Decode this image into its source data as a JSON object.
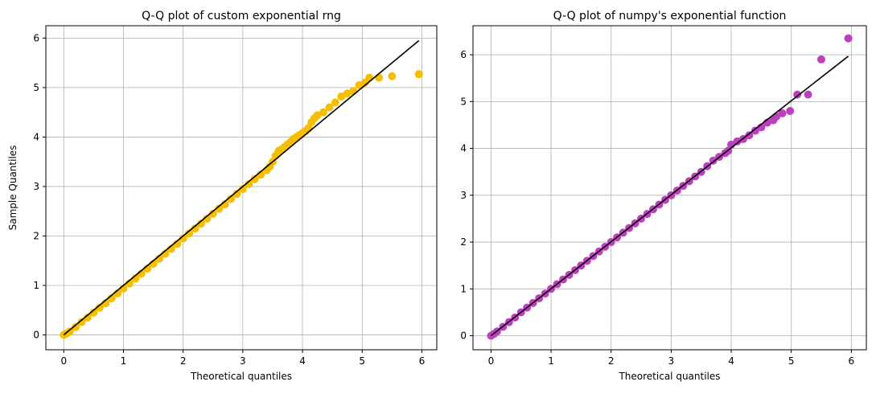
{
  "chart_data": [
    {
      "type": "scatter",
      "title": "Q-Q plot of custom exponential rng",
      "xlabel": "Theoretical quantiles",
      "ylabel": "Sample Quantiles",
      "xlim": [
        -0.3,
        6.25
      ],
      "ylim": [
        -0.3,
        6.25
      ],
      "xticks": [
        0,
        1,
        2,
        3,
        4,
        5,
        6
      ],
      "yticks": [
        0,
        1,
        2,
        3,
        4,
        5,
        6
      ],
      "grid": true,
      "point_color": "#f5be00",
      "line_color": "#000000",
      "reference_line": {
        "x": [
          0,
          5.95
        ],
        "y": [
          0,
          5.95
        ]
      },
      "points": [
        [
          0.0,
          0.0
        ],
        [
          0.05,
          0.03
        ],
        [
          0.1,
          0.07
        ],
        [
          0.2,
          0.16
        ],
        [
          0.3,
          0.26
        ],
        [
          0.4,
          0.35
        ],
        [
          0.5,
          0.45
        ],
        [
          0.6,
          0.55
        ],
        [
          0.7,
          0.64
        ],
        [
          0.8,
          0.74
        ],
        [
          0.9,
          0.84
        ],
        [
          1.0,
          0.94
        ],
        [
          1.1,
          1.04
        ],
        [
          1.2,
          1.14
        ],
        [
          1.3,
          1.24
        ],
        [
          1.4,
          1.34
        ],
        [
          1.5,
          1.44
        ],
        [
          1.6,
          1.54
        ],
        [
          1.7,
          1.64
        ],
        [
          1.8,
          1.74
        ],
        [
          1.9,
          1.84
        ],
        [
          2.0,
          1.95
        ],
        [
          2.1,
          2.05
        ],
        [
          2.2,
          2.15
        ],
        [
          2.3,
          2.25
        ],
        [
          2.4,
          2.35
        ],
        [
          2.5,
          2.45
        ],
        [
          2.6,
          2.55
        ],
        [
          2.7,
          2.64
        ],
        [
          2.8,
          2.75
        ],
        [
          2.9,
          2.85
        ],
        [
          3.0,
          2.95
        ],
        [
          3.1,
          3.05
        ],
        [
          3.2,
          3.15
        ],
        [
          3.3,
          3.24
        ],
        [
          3.4,
          3.33
        ],
        [
          3.45,
          3.4
        ],
        [
          3.5,
          3.5
        ],
        [
          3.55,
          3.62
        ],
        [
          3.6,
          3.72
        ],
        [
          3.65,
          3.75
        ],
        [
          3.7,
          3.8
        ],
        [
          3.75,
          3.85
        ],
        [
          3.8,
          3.9
        ],
        [
          3.85,
          3.96
        ],
        [
          3.9,
          4.0
        ],
        [
          3.95,
          4.04
        ],
        [
          4.0,
          4.08
        ],
        [
          4.05,
          4.12
        ],
        [
          4.1,
          4.18
        ],
        [
          4.15,
          4.3
        ],
        [
          4.2,
          4.38
        ],
        [
          4.25,
          4.44
        ],
        [
          4.35,
          4.5
        ],
        [
          4.45,
          4.6
        ],
        [
          4.55,
          4.7
        ],
        [
          4.65,
          4.82
        ],
        [
          4.75,
          4.88
        ],
        [
          4.85,
          4.93
        ],
        [
          4.95,
          5.05
        ],
        [
          5.05,
          5.1
        ],
        [
          5.12,
          5.2
        ],
        [
          5.28,
          5.2
        ],
        [
          5.5,
          5.23
        ],
        [
          5.95,
          5.27
        ]
      ]
    },
    {
      "type": "scatter",
      "title": "Q-Q plot of numpy's exponential function",
      "xlabel": "Theoretical quantiles",
      "ylabel": "",
      "xlim": [
        -0.3,
        6.25
      ],
      "ylim": [
        -0.3,
        6.62
      ],
      "xticks": [
        0,
        1,
        2,
        3,
        4,
        5,
        6
      ],
      "yticks": [
        0,
        1,
        2,
        3,
        4,
        5,
        6
      ],
      "grid": true,
      "point_color": "#bf40bf",
      "line_color": "#000000",
      "reference_line": {
        "x": [
          0,
          5.95
        ],
        "y": [
          0,
          5.97
        ]
      },
      "points": [
        [
          0.0,
          0.0
        ],
        [
          0.05,
          0.04
        ],
        [
          0.1,
          0.09
        ],
        [
          0.2,
          0.19
        ],
        [
          0.3,
          0.29
        ],
        [
          0.4,
          0.39
        ],
        [
          0.5,
          0.5
        ],
        [
          0.6,
          0.6
        ],
        [
          0.7,
          0.7
        ],
        [
          0.8,
          0.8
        ],
        [
          0.9,
          0.9
        ],
        [
          1.0,
          1.0
        ],
        [
          1.1,
          1.1
        ],
        [
          1.2,
          1.2
        ],
        [
          1.3,
          1.3
        ],
        [
          1.4,
          1.4
        ],
        [
          1.5,
          1.5
        ],
        [
          1.6,
          1.6
        ],
        [
          1.7,
          1.7
        ],
        [
          1.8,
          1.8
        ],
        [
          1.9,
          1.9
        ],
        [
          2.0,
          2.0
        ],
        [
          2.1,
          2.1
        ],
        [
          2.2,
          2.2
        ],
        [
          2.3,
          2.3
        ],
        [
          2.4,
          2.4
        ],
        [
          2.5,
          2.5
        ],
        [
          2.6,
          2.6
        ],
        [
          2.7,
          2.7
        ],
        [
          2.8,
          2.8
        ],
        [
          2.9,
          2.9
        ],
        [
          3.0,
          3.0
        ],
        [
          3.1,
          3.1
        ],
        [
          3.2,
          3.2
        ],
        [
          3.3,
          3.3
        ],
        [
          3.4,
          3.4
        ],
        [
          3.5,
          3.5
        ],
        [
          3.6,
          3.62
        ],
        [
          3.7,
          3.74
        ],
        [
          3.8,
          3.82
        ],
        [
          3.9,
          3.9
        ],
        [
          3.95,
          3.95
        ],
        [
          4.0,
          4.08
        ],
        [
          4.1,
          4.15
        ],
        [
          4.2,
          4.2
        ],
        [
          4.3,
          4.28
        ],
        [
          4.4,
          4.38
        ],
        [
          4.5,
          4.45
        ],
        [
          4.6,
          4.55
        ],
        [
          4.7,
          4.6
        ],
        [
          4.75,
          4.68
        ],
        [
          4.85,
          4.75
        ],
        [
          4.98,
          4.8
        ],
        [
          5.1,
          5.15
        ],
        [
          5.28,
          5.15
        ],
        [
          5.5,
          5.9
        ],
        [
          5.95,
          6.35
        ]
      ]
    }
  ]
}
